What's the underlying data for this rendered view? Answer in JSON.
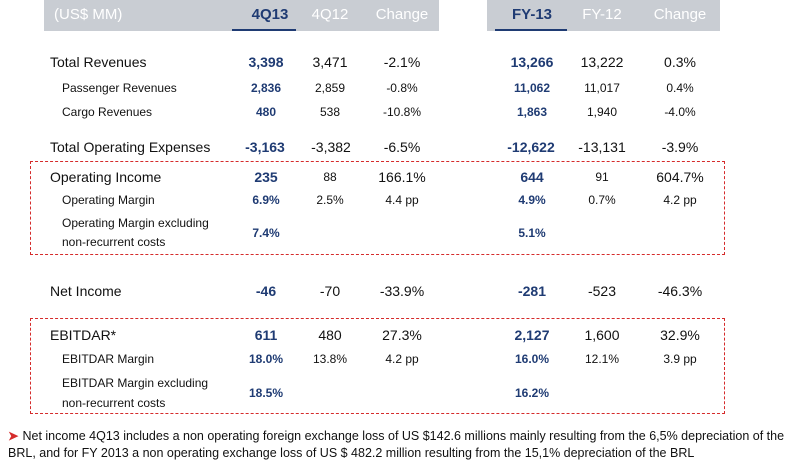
{
  "header": {
    "label": "(US$ MM)",
    "columns": [
      "4Q13",
      "4Q12",
      "Change",
      "FY-13",
      "FY-12",
      "Change"
    ],
    "highlight_color": "#1f3b73",
    "band_color": "#c9cdd3"
  },
  "rows": [
    {
      "label": "Total Revenues",
      "values": [
        "3,398",
        "3,471",
        "-2.1%",
        "13,266",
        "13,222",
        "0.3%"
      ]
    },
    {
      "label": "Passenger Revenues",
      "values": [
        "2,836",
        "2,859",
        "-0.8%",
        "11,062",
        "11,017",
        "0.4%"
      ]
    },
    {
      "label": "Cargo Revenues",
      "values": [
        "480",
        "538",
        "-10.8%",
        "1,863",
        "1,940",
        "-4.0%"
      ]
    },
    {
      "label": "Total Operating Expenses",
      "values": [
        "-3,163",
        "-3,382",
        "-6.5%",
        "-12,622",
        "-13,131",
        "-3.9%"
      ]
    },
    {
      "label": "Operating Income",
      "values": [
        "235",
        "88",
        "166.1%",
        "644",
        "91",
        "604.7%"
      ]
    },
    {
      "label": "Operating Margin",
      "values": [
        "6.9%",
        "2.5%",
        "4.4 pp",
        "4.9%",
        "0.7%",
        "4.2 pp"
      ]
    },
    {
      "label_line1": "Operating Margin excluding",
      "label_line2": "non-recurrent costs",
      "values": [
        "7.4%",
        "",
        "",
        "5.1%",
        "",
        ""
      ]
    },
    {
      "label": "Net Income",
      "values": [
        "-46",
        "-70",
        "-33.9%",
        "-281",
        "-523",
        "-46.3%"
      ]
    },
    {
      "label": "EBITDAR*",
      "values": [
        "611",
        "480",
        "27.3%",
        "2,127",
        "1,600",
        "32.9%"
      ]
    },
    {
      "label": "EBITDAR Margin",
      "values": [
        "18.0%",
        "13.8%",
        "4.2 pp",
        "16.0%",
        "12.1%",
        "3.9 pp"
      ]
    },
    {
      "label_line1": "EBITDAR Margin excluding",
      "label_line2": "non-recurrent costs",
      "values": [
        "18.5%",
        "",
        "",
        "16.2%",
        "",
        ""
      ]
    }
  ],
  "footnote": {
    "icon": "arrow-right-icon",
    "text": "Net income 4Q13 includes a non operating foreign exchange loss of US $142.6 millions mainly resulting from the 6,5% depreciation of the BRL, and for FY 2013 a non operating exchange loss of US $ 482.2 million resulting from the 15,1% depreciation of the BRL"
  },
  "box_color": "#d52b2b"
}
